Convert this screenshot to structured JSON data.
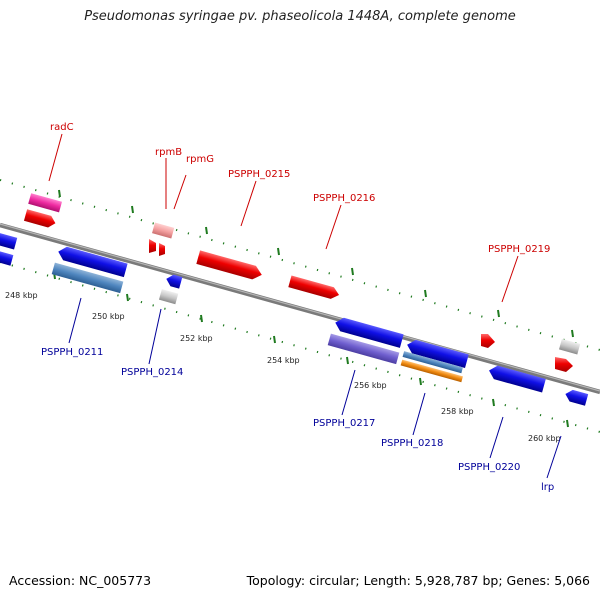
{
  "title": "Pseudomonas syringae pv. phaseolicola 1448A, complete genome",
  "footer": {
    "accession": "Accession: NC_005773",
    "summary": "Topology: circular; Length: 5,928,787 bp; Genes: 5,066"
  },
  "colors": {
    "forward_label": "#cc0000",
    "reverse_label": "#000099",
    "backbone": "#8a8a8a",
    "scale_dots": "#1f7a1f",
    "forward_gene": "#ff0000",
    "reverse_gene": "#0000ee"
  },
  "scale_labels": [
    "248 kbp",
    "250 kbp",
    "252 kbp",
    "254 kbp",
    "256 kbp",
    "258 kbp",
    "260 kbp"
  ],
  "forward_labels": [
    "radC",
    "rpmB",
    "rpmG",
    "PSPPH_0215",
    "PSPPH_0216",
    "PSPPH_0219"
  ],
  "reverse_labels": [
    "PSPPH_0211",
    "PSPPH_0214",
    "PSPPH_0217",
    "PSPPH_0218",
    "PSPPH_0220",
    "lrp"
  ]
}
